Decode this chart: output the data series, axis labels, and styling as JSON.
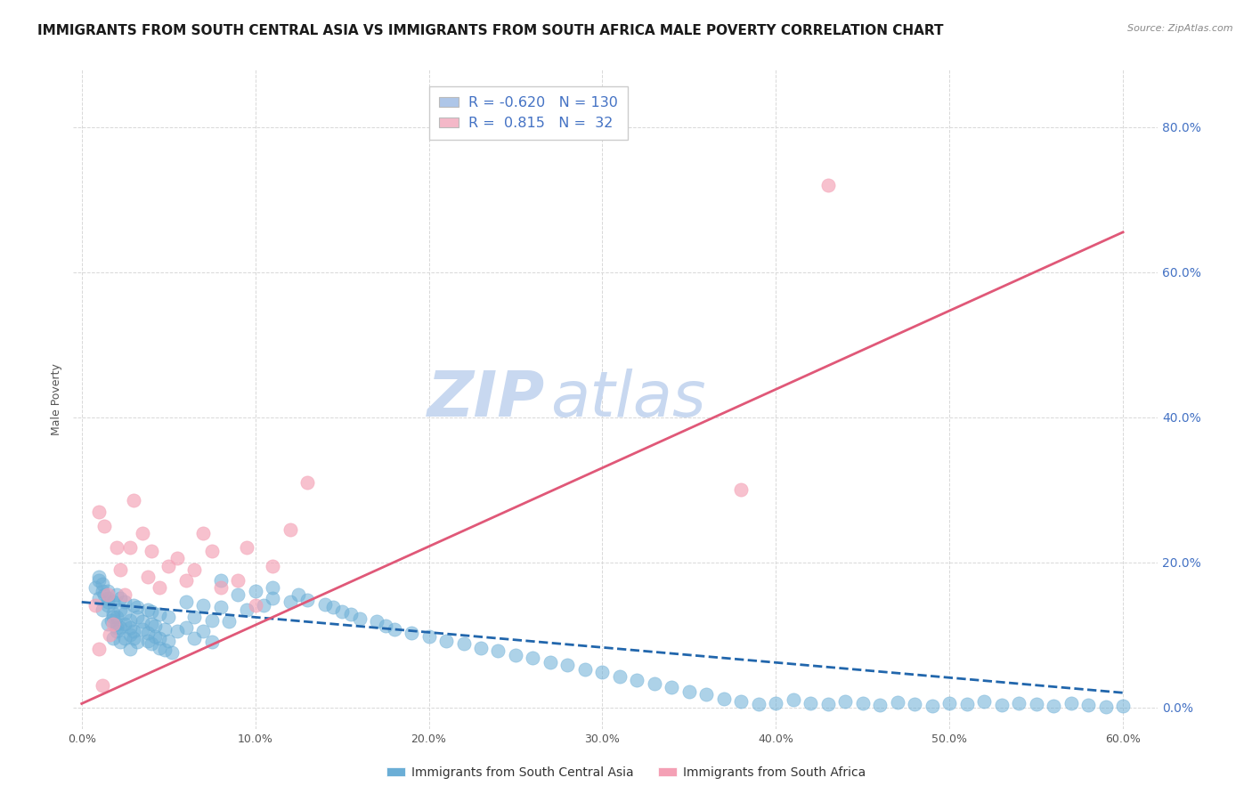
{
  "title": "IMMIGRANTS FROM SOUTH CENTRAL ASIA VS IMMIGRANTS FROM SOUTH AFRICA MALE POVERTY CORRELATION CHART",
  "source": "Source: ZipAtlas.com",
  "ylabel": "Male Poverty",
  "x_tick_labels": [
    "0.0%",
    "10.0%",
    "20.0%",
    "30.0%",
    "40.0%",
    "50.0%",
    "60.0%"
  ],
  "y_tick_labels_right": [
    "0.0%",
    "20.0%",
    "40.0%",
    "60.0%",
    "80.0%"
  ],
  "xlim": [
    -0.005,
    0.62
  ],
  "ylim": [
    -0.03,
    0.88
  ],
  "legend_label_blue": "Immigrants from South Central Asia",
  "legend_label_pink": "Immigrants from South Africa",
  "r_blue": -0.62,
  "n_blue": 130,
  "r_pink": 0.815,
  "n_pink": 32,
  "blue_scatter_x": [
    0.008,
    0.01,
    0.012,
    0.015,
    0.018,
    0.01,
    0.012,
    0.015,
    0.018,
    0.02,
    0.01,
    0.013,
    0.015,
    0.017,
    0.02,
    0.022,
    0.012,
    0.015,
    0.018,
    0.02,
    0.015,
    0.018,
    0.02,
    0.022,
    0.025,
    0.028,
    0.02,
    0.022,
    0.025,
    0.028,
    0.022,
    0.025,
    0.028,
    0.03,
    0.025,
    0.028,
    0.03,
    0.032,
    0.03,
    0.032,
    0.035,
    0.038,
    0.032,
    0.035,
    0.038,
    0.04,
    0.038,
    0.04,
    0.042,
    0.045,
    0.04,
    0.042,
    0.045,
    0.048,
    0.045,
    0.048,
    0.05,
    0.052,
    0.05,
    0.055,
    0.06,
    0.065,
    0.06,
    0.065,
    0.07,
    0.075,
    0.07,
    0.075,
    0.08,
    0.085,
    0.08,
    0.09,
    0.095,
    0.1,
    0.105,
    0.11,
    0.11,
    0.12,
    0.125,
    0.13,
    0.14,
    0.145,
    0.15,
    0.155,
    0.16,
    0.17,
    0.175,
    0.18,
    0.19,
    0.2,
    0.21,
    0.22,
    0.23,
    0.24,
    0.25,
    0.26,
    0.27,
    0.28,
    0.29,
    0.3,
    0.31,
    0.32,
    0.33,
    0.34,
    0.35,
    0.36,
    0.37,
    0.38,
    0.39,
    0.4,
    0.41,
    0.42,
    0.43,
    0.44,
    0.45,
    0.46,
    0.47,
    0.48,
    0.49,
    0.5,
    0.51,
    0.52,
    0.53,
    0.54,
    0.55,
    0.56,
    0.57,
    0.58,
    0.59,
    0.6
  ],
  "blue_scatter_y": [
    0.165,
    0.15,
    0.135,
    0.115,
    0.095,
    0.175,
    0.16,
    0.145,
    0.125,
    0.11,
    0.18,
    0.155,
    0.14,
    0.12,
    0.105,
    0.09,
    0.17,
    0.15,
    0.13,
    0.115,
    0.16,
    0.145,
    0.125,
    0.11,
    0.095,
    0.08,
    0.155,
    0.135,
    0.115,
    0.1,
    0.15,
    0.13,
    0.11,
    0.095,
    0.145,
    0.12,
    0.105,
    0.09,
    0.14,
    0.125,
    0.108,
    0.092,
    0.138,
    0.118,
    0.102,
    0.088,
    0.135,
    0.115,
    0.098,
    0.082,
    0.132,
    0.112,
    0.095,
    0.079,
    0.128,
    0.108,
    0.092,
    0.076,
    0.125,
    0.105,
    0.145,
    0.125,
    0.11,
    0.095,
    0.14,
    0.12,
    0.105,
    0.09,
    0.138,
    0.118,
    0.175,
    0.155,
    0.135,
    0.16,
    0.14,
    0.165,
    0.15,
    0.145,
    0.155,
    0.148,
    0.142,
    0.138,
    0.132,
    0.128,
    0.122,
    0.118,
    0.112,
    0.108,
    0.102,
    0.098,
    0.092,
    0.088,
    0.082,
    0.078,
    0.072,
    0.068,
    0.062,
    0.058,
    0.052,
    0.048,
    0.042,
    0.038,
    0.032,
    0.028,
    0.022,
    0.018,
    0.012,
    0.008,
    0.004,
    0.005,
    0.01,
    0.006,
    0.004,
    0.008,
    0.005,
    0.003,
    0.007,
    0.004,
    0.002,
    0.006,
    0.004,
    0.008,
    0.003,
    0.006,
    0.004,
    0.002,
    0.005,
    0.003,
    0.001,
    0.002
  ],
  "pink_scatter_x": [
    0.008,
    0.01,
    0.012,
    0.015,
    0.018,
    0.01,
    0.013,
    0.016,
    0.02,
    0.022,
    0.025,
    0.028,
    0.03,
    0.035,
    0.038,
    0.04,
    0.045,
    0.05,
    0.055,
    0.06,
    0.065,
    0.07,
    0.075,
    0.08,
    0.09,
    0.095,
    0.1,
    0.11,
    0.12,
    0.13,
    0.38,
    0.43
  ],
  "pink_scatter_y": [
    0.14,
    0.08,
    0.03,
    0.155,
    0.115,
    0.27,
    0.25,
    0.1,
    0.22,
    0.19,
    0.155,
    0.22,
    0.285,
    0.24,
    0.18,
    0.215,
    0.165,
    0.195,
    0.205,
    0.175,
    0.19,
    0.24,
    0.215,
    0.165,
    0.175,
    0.22,
    0.14,
    0.195,
    0.245,
    0.31,
    0.3,
    0.72
  ],
  "blue_line_x": [
    0.0,
    0.6
  ],
  "blue_line_y": [
    0.145,
    0.02
  ],
  "pink_line_x": [
    0.0,
    0.6
  ],
  "pink_line_y": [
    0.005,
    0.655
  ],
  "watermark_zip": "ZIP",
  "watermark_atlas": "atlas",
  "watermark_color": "#c8d8f0",
  "scatter_blue": "#6baed6",
  "scatter_pink": "#f4a0b5",
  "line_blue": "#2166ac",
  "line_pink": "#e05878",
  "bg_color": "#ffffff",
  "grid_color": "#d8d8d8",
  "title_fontsize": 11,
  "axis_label_fontsize": 9,
  "tick_fontsize": 9,
  "right_tick_color": "#4472c4",
  "legend_text_color": "#4472c4"
}
